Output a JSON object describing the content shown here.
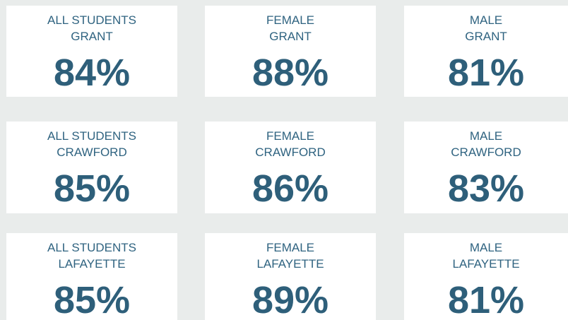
{
  "cards": [
    {
      "lines": [
        "ALL STUDENTS",
        "GRANT"
      ],
      "value": "84%"
    },
    {
      "lines": [
        "FEMALE",
        "GRANT"
      ],
      "value": "88%"
    },
    {
      "lines": [
        "MALE",
        "GRANT"
      ],
      "value": "81%"
    },
    {
      "lines": [
        "ALL STUDENTS",
        "CRAWFORD"
      ],
      "value": "85%"
    },
    {
      "lines": [
        "FEMALE",
        "CRAWFORD"
      ],
      "value": "86%"
    },
    {
      "lines": [
        "MALE",
        "CRAWFORD"
      ],
      "value": "83%"
    },
    {
      "lines": [
        "ALL STUDENTS",
        "LAFAYETTE"
      ],
      "value": "85%"
    },
    {
      "lines": [
        "FEMALE",
        "LAFAYETTE"
      ],
      "value": "89%"
    },
    {
      "lines": [
        "MALE",
        "LAFAYETTE"
      ],
      "value": "81%"
    }
  ]
}
